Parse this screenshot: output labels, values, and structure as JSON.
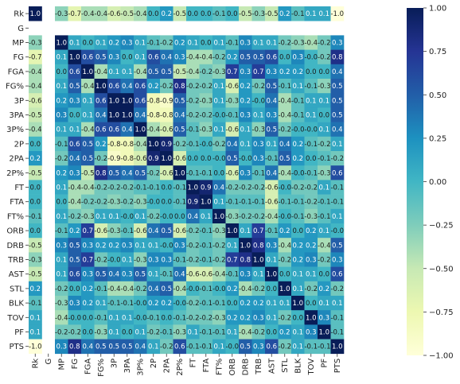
{
  "chart_data": {
    "type": "heatmap",
    "title": "",
    "xlabel": "",
    "ylabel": "",
    "labels": [
      "Rk",
      "G",
      "MP",
      "FG",
      "FGA",
      "FG%",
      "3P",
      "3PA",
      "3P%",
      "2P",
      "2PA",
      "2P%",
      "FT",
      "FTA",
      "FT%",
      "ORB",
      "DRB",
      "TRB",
      "AST",
      "STL",
      "BLK",
      "TOV",
      "PF",
      "PTS"
    ],
    "values": [
      [
        "1.0",
        null,
        "-0.3",
        "-0.7",
        "-0.4",
        "-0.4",
        "-0.6",
        "-0.5",
        "-0.4",
        "0.0",
        "0.2",
        "-0.5",
        "0.0",
        "0.0",
        "-0.1",
        "0.0",
        "-0.5",
        "-0.3",
        "-0.5",
        "0.2",
        "-0.1",
        "0.1",
        "0.1",
        "-1.0"
      ],
      [
        null,
        null,
        null,
        null,
        null,
        null,
        null,
        null,
        null,
        null,
        null,
        null,
        null,
        null,
        null,
        null,
        null,
        null,
        null,
        null,
        null,
        null,
        null,
        null
      ],
      [
        "-0.3",
        null,
        "1.0",
        "0.1",
        "0.0",
        "0.1",
        "0.2",
        "0.3",
        "0.1",
        "-0.1",
        "-0.2",
        "0.2",
        "0.1",
        "0.0",
        "0.1",
        "-0.1",
        "0.3",
        "0.1",
        "0.1",
        "-0.2",
        "-0.3",
        "-0.4",
        "-0.2",
        "0.3"
      ],
      [
        "-0.7",
        null,
        "0.1",
        "1.0",
        "0.6",
        "0.5",
        "0.3",
        "0.0",
        "0.1",
        "0.6",
        "0.4",
        "0.3",
        "-0.4",
        "-0.4",
        "-0.2",
        "0.2",
        "0.5",
        "0.5",
        "0.6",
        "0.0",
        "0.3",
        "-0.0",
        "-0.2",
        "0.8"
      ],
      [
        "-0.4",
        null,
        "0.0",
        "0.6",
        "1.0",
        "-0.4",
        "0.1",
        "0.1",
        "-0.4",
        "0.5",
        "0.5",
        "-0.5",
        "-0.4",
        "-0.2",
        "-0.3",
        "0.7",
        "0.3",
        "0.7",
        "0.3",
        "0.2",
        "0.2",
        "0.0",
        "0.0",
        "0.4"
      ],
      [
        "-0.4",
        null,
        "0.1",
        "0.5",
        "-0.4",
        "1.0",
        "0.6",
        "0.4",
        "0.6",
        "0.2",
        "-0.2",
        "0.8",
        "-0.2",
        "-0.2",
        "0.1",
        "-0.6",
        "0.2",
        "-0.2",
        "0.5",
        "-0.1",
        "0.1",
        "-0.1",
        "-0.3",
        "0.5"
      ],
      [
        "-0.6",
        null,
        "0.2",
        "0.3",
        "0.1",
        "0.6",
        "1.0",
        "1.0",
        "0.6",
        "-0.8",
        "-0.9",
        "0.5",
        "-0.2",
        "-0.3",
        "0.1",
        "-0.3",
        "0.2",
        "-0.0",
        "0.4",
        "-0.4",
        "-0.1",
        "0.1",
        "0.1",
        "0.5"
      ],
      [
        "-0.5",
        null,
        "0.3",
        "0.0",
        "0.1",
        "0.4",
        "1.0",
        "1.0",
        "0.4",
        "-0.8",
        "-0.8",
        "0.4",
        "-0.2",
        "-0.2",
        "-0.0",
        "-0.1",
        "0.3",
        "0.1",
        "0.3",
        "-0.4",
        "-0.1",
        "0.1",
        "0.0",
        "0.5"
      ],
      [
        "-0.4",
        null,
        "0.1",
        "0.1",
        "-0.4",
        "0.6",
        "0.6",
        "0.4",
        "1.0",
        "-0.4",
        "-0.6",
        "0.5",
        "-0.1",
        "-0.3",
        "0.1",
        "-0.6",
        "0.1",
        "-0.3",
        "0.5",
        "-0.2",
        "-0.0",
        "-0.0",
        "0.1",
        "0.4"
      ],
      [
        "0.0",
        null,
        "-0.1",
        "0.6",
        "0.5",
        "0.2",
        "-0.8",
        "-0.8",
        "-0.4",
        "1.0",
        "0.9",
        "-0.2",
        "-0.1",
        "-0.0",
        "-0.2",
        "0.4",
        "0.1",
        "0.3",
        "0.1",
        "0.4",
        "0.2",
        "-0.1",
        "-0.2",
        "0.1"
      ],
      [
        "0.2",
        null,
        "-0.2",
        "0.4",
        "0.5",
        "-0.2",
        "-0.9",
        "-0.8",
        "-0.6",
        "0.9",
        "1.0",
        "-0.6",
        "0.0",
        "0.0",
        "-0.0",
        "0.5",
        "-0.0",
        "0.3",
        "-0.1",
        "0.5",
        "0.2",
        "0.0",
        "-0.1",
        "-0.2"
      ],
      [
        "-0.5",
        null,
        "0.2",
        "0.3",
        "-0.5",
        "0.8",
        "0.5",
        "0.4",
        "0.5",
        "-0.2",
        "-0.6",
        "1.0",
        "-0.1",
        "-0.1",
        "0.0",
        "-0.6",
        "0.3",
        "-0.1",
        "0.4",
        "-0.4",
        "-0.0",
        "-0.1",
        "-0.3",
        "0.6"
      ],
      [
        "0.0",
        null,
        "0.1",
        "-0.4",
        "-0.4",
        "-0.2",
        "-0.2",
        "-0.2",
        "-0.1",
        "-0.1",
        "0.0",
        "-0.1",
        "1.0",
        "0.9",
        "0.4",
        "-0.2",
        "-0.2",
        "-0.2",
        "-0.6",
        "-0.0",
        "-0.2",
        "-0.2",
        "0.1",
        "-0.1"
      ],
      [
        "0.0",
        null,
        "0.0",
        "-0.4",
        "-0.2",
        "-0.2",
        "-0.3",
        "-0.2",
        "-0.3",
        "-0.0",
        "0.0",
        "-0.1",
        "0.9",
        "1.0",
        "0.1",
        "-0.1",
        "-0.1",
        "-0.1",
        "-0.6",
        "-0.1",
        "-0.1",
        "-0.2",
        "-0.1",
        "-0.1"
      ],
      [
        "-0.1",
        null,
        "0.1",
        "-0.2",
        "-0.3",
        "0.1",
        "0.1",
        "-0.0",
        "0.1",
        "-0.2",
        "-0.0",
        "0.0",
        "0.4",
        "0.1",
        "1.0",
        "-0.3",
        "-0.2",
        "-0.2",
        "-0.4",
        "-0.0",
        "-0.1",
        "-0.3",
        "-0.1",
        "0.1"
      ],
      [
        "0.0",
        null,
        "-0.1",
        "0.2",
        "0.7",
        "-0.6",
        "-0.3",
        "-0.1",
        "-0.6",
        "0.4",
        "0.5",
        "-0.6",
        "-0.2",
        "-0.1",
        "-0.3",
        "1.0",
        "0.1",
        "0.7",
        "-0.1",
        "0.2",
        "0.0",
        "0.2",
        "0.1",
        "-0.0"
      ],
      [
        "-0.5",
        null,
        "0.3",
        "0.5",
        "0.3",
        "0.2",
        "0.2",
        "0.3",
        "0.1",
        "0.1",
        "-0.0",
        "0.3",
        "-0.2",
        "-0.1",
        "-0.2",
        "0.1",
        "1.0",
        "0.8",
        "0.3",
        "-0.4",
        "0.2",
        "0.2",
        "-0.4",
        "0.5"
      ],
      [
        "-0.3",
        null,
        "0.1",
        "0.5",
        "0.7",
        "-0.2",
        "-0.0",
        "0.1",
        "-0.3",
        "0.3",
        "0.3",
        "-0.1",
        "-0.2",
        "-0.1",
        "-0.2",
        "0.7",
        "0.8",
        "1.0",
        "0.1",
        "-0.2",
        "0.2",
        "0.3",
        "-0.2",
        "0.3"
      ],
      [
        "-0.5",
        null,
        "0.1",
        "0.6",
        "0.3",
        "0.5",
        "0.4",
        "0.3",
        "0.5",
        "0.1",
        "-0.1",
        "0.4",
        "-0.6",
        "-0.6",
        "-0.4",
        "-0.1",
        "0.3",
        "0.1",
        "1.0",
        "0.0",
        "0.1",
        "0.1",
        "0.0",
        "0.6"
      ],
      [
        "0.2",
        null,
        "-0.2",
        "0.0",
        "0.2",
        "-0.1",
        "-0.4",
        "-0.4",
        "-0.2",
        "0.4",
        "0.5",
        "-0.4",
        "-0.0",
        "-0.1",
        "-0.0",
        "0.2",
        "-0.4",
        "-0.2",
        "0.0",
        "1.0",
        "0.1",
        "-0.2",
        "0.2",
        "-0.2"
      ],
      [
        "-0.1",
        null,
        "-0.3",
        "0.3",
        "0.2",
        "0.1",
        "-0.1",
        "-0.1",
        "-0.0",
        "0.2",
        "0.2",
        "-0.0",
        "-0.2",
        "-0.1",
        "-0.1",
        "0.0",
        "0.2",
        "0.2",
        "0.1",
        "0.1",
        "1.0",
        "0.0",
        "0.1",
        "0.1"
      ],
      [
        "0.1",
        null,
        "-0.4",
        "-0.0",
        "0.0",
        "-0.1",
        "0.1",
        "0.1",
        "-0.0",
        "-0.1",
        "0.0",
        "-0.1",
        "-0.2",
        "-0.2",
        "-0.3",
        "0.2",
        "0.2",
        "0.3",
        "0.1",
        "-0.2",
        "0.0",
        "1.0",
        "0.3",
        "-0.1"
      ],
      [
        "0.1",
        null,
        "-0.2",
        "-0.2",
        "0.0",
        "-0.3",
        "0.1",
        "0.0",
        "0.1",
        "-0.2",
        "-0.1",
        "-0.3",
        "0.1",
        "-0.1",
        "-0.1",
        "0.1",
        "-0.4",
        "-0.2",
        "0.0",
        "0.2",
        "0.1",
        "0.3",
        "1.0",
        "-0.1"
      ],
      [
        "-1.0",
        null,
        "0.3",
        "0.8",
        "0.4",
        "0.5",
        "0.5",
        "0.5",
        "0.4",
        "0.1",
        "-0.2",
        "0.6",
        "-0.1",
        "-0.1",
        "0.1",
        "-0.0",
        "0.5",
        "0.3",
        "0.6",
        "-0.2",
        "0.1",
        "-0.1",
        "-0.1",
        "1.0"
      ]
    ],
    "colorbar": {
      "min": -1.0,
      "max": 1.0,
      "ticks": [
        "1.00",
        "0.75",
        "0.50",
        "0.25",
        "0.00",
        "−0.25",
        "−0.50",
        "−0.75",
        "−1.00"
      ],
      "tick_values": [
        1.0,
        0.75,
        0.5,
        0.25,
        0.0,
        -0.25,
        -0.5,
        -0.75,
        -1.0
      ],
      "colormap": "YlGnBu",
      "colormap_stops": [
        "#ffffd9",
        "#edf8b1",
        "#c7e9b4",
        "#7fcdbb",
        "#41b6c4",
        "#1d91c0",
        "#225ea8",
        "#253494",
        "#081d58"
      ]
    },
    "grid": false,
    "legend": "colorbar-right"
  }
}
